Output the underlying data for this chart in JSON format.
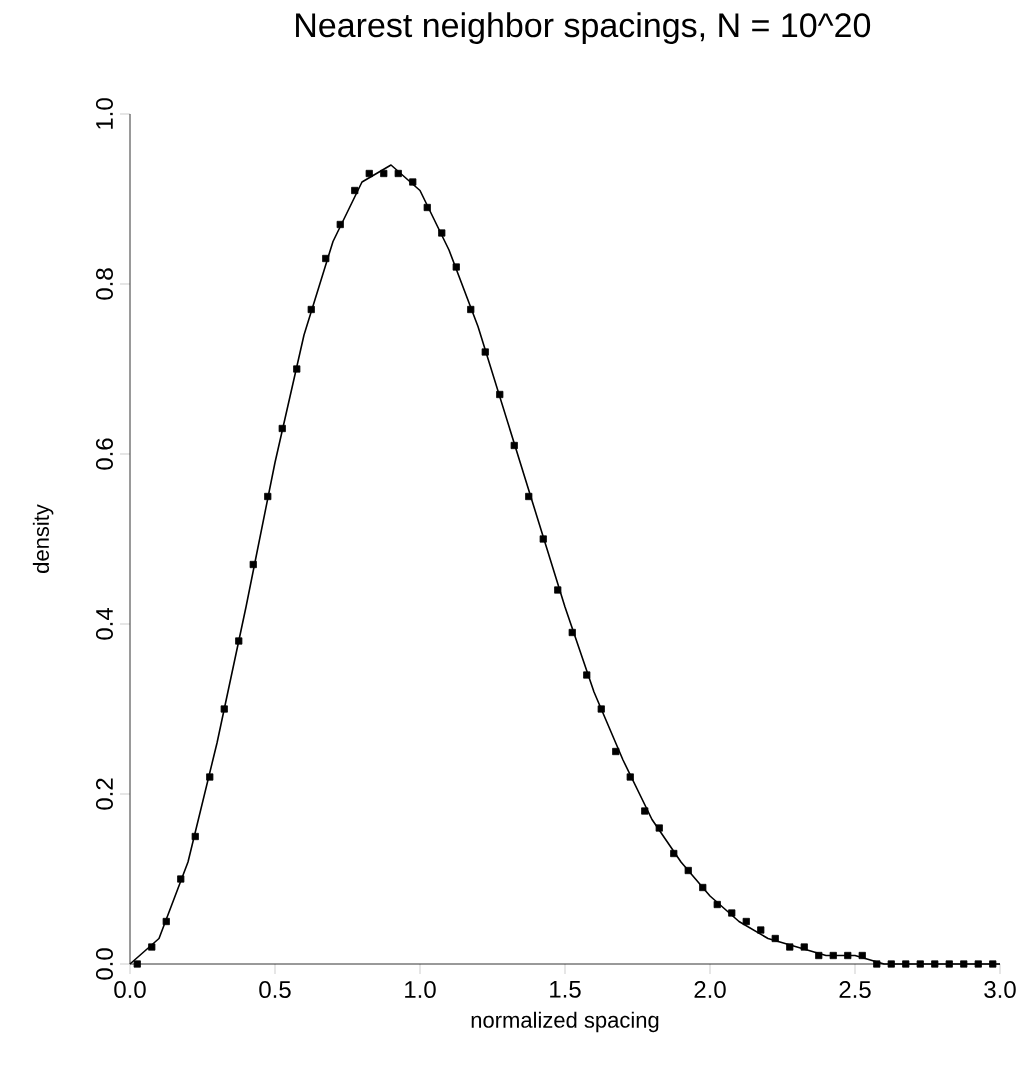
{
  "chart_data": {
    "type": "line",
    "title": "Nearest neighbor spacings, N = 10^20",
    "xlabel": "normalized spacing",
    "ylabel": "density",
    "xlim": [
      0,
      3
    ],
    "ylim": [
      0,
      1
    ],
    "xticks": [
      {
        "value": 0,
        "label": "0.0"
      },
      0.5,
      {
        "value": 1,
        "label": "1.0"
      },
      1.5,
      {
        "value": 2,
        "label": "2.0"
      },
      2.5,
      {
        "value": 3,
        "label": "3.0"
      }
    ],
    "yticks": [
      {
        "value": 0,
        "label": "0.0"
      },
      0.2,
      0.4,
      0.6,
      0.8,
      {
        "value": 1,
        "label": "1.0"
      }
    ],
    "grid": false,
    "series": [
      {
        "color": "#000000",
        "marker": "none",
        "line_style": "solid",
        "x": [
          0,
          0.1,
          0.2,
          0.3,
          0.4,
          0.5,
          0.6,
          0.7,
          0.8,
          0.9,
          1.0,
          1.1,
          1.2,
          1.3,
          1.4,
          1.5,
          1.6,
          1.7,
          1.8,
          1.9,
          2.0,
          2.1,
          2.2,
          2.3,
          2.4,
          2.5,
          2.6,
          2.7,
          2.8,
          2.9,
          3.0
        ],
        "values": [
          0,
          0.03,
          0.12,
          0.26,
          0.42,
          0.59,
          0.74,
          0.85,
          0.92,
          0.94,
          0.91,
          0.84,
          0.75,
          0.64,
          0.53,
          0.42,
          0.32,
          0.24,
          0.17,
          0.12,
          0.08,
          0.05,
          0.03,
          0.02,
          0.01,
          0.01,
          0,
          0,
          0,
          0,
          0
        ]
      },
      {
        "type": "scatter",
        "color": "#000000",
        "marker": "square",
        "x": [
          0.025,
          0.075,
          0.125,
          0.175,
          0.225,
          0.275,
          0.325,
          0.375,
          0.425,
          0.475,
          0.525,
          0.575,
          0.625,
          0.675,
          0.725,
          0.775,
          0.825,
          0.875,
          0.925,
          0.975,
          1.025,
          1.075,
          1.125,
          1.175,
          1.225,
          1.275,
          1.325,
          1.375,
          1.425,
          1.475,
          1.525,
          1.575,
          1.625,
          1.675,
          1.725,
          1.775,
          1.825,
          1.875,
          1.925,
          1.975,
          2.025,
          2.075,
          2.125,
          2.175,
          2.225,
          2.275,
          2.325,
          2.375,
          2.425,
          2.475,
          2.525,
          2.575,
          2.625,
          2.675,
          2.725,
          2.775,
          2.825,
          2.875,
          2.925,
          2.975
        ],
        "values": [
          0,
          0.02,
          0.05,
          0.1,
          0.15,
          0.22,
          0.3,
          0.38,
          0.47,
          0.55,
          0.63,
          0.7,
          0.77,
          0.83,
          0.87,
          0.91,
          0.93,
          0.93,
          0.93,
          0.92,
          0.89,
          0.86,
          0.82,
          0.77,
          0.72,
          0.67,
          0.61,
          0.55,
          0.5,
          0.44,
          0.39,
          0.34,
          0.3,
          0.25,
          0.22,
          0.18,
          0.16,
          0.13,
          0.11,
          0.09,
          0.07,
          0.06,
          0.05,
          0.04,
          0.03,
          0.02,
          0.02,
          0.01,
          0.01,
          0.01,
          0.01,
          0,
          0,
          0,
          0,
          0,
          0,
          0,
          0,
          0
        ]
      }
    ]
  }
}
